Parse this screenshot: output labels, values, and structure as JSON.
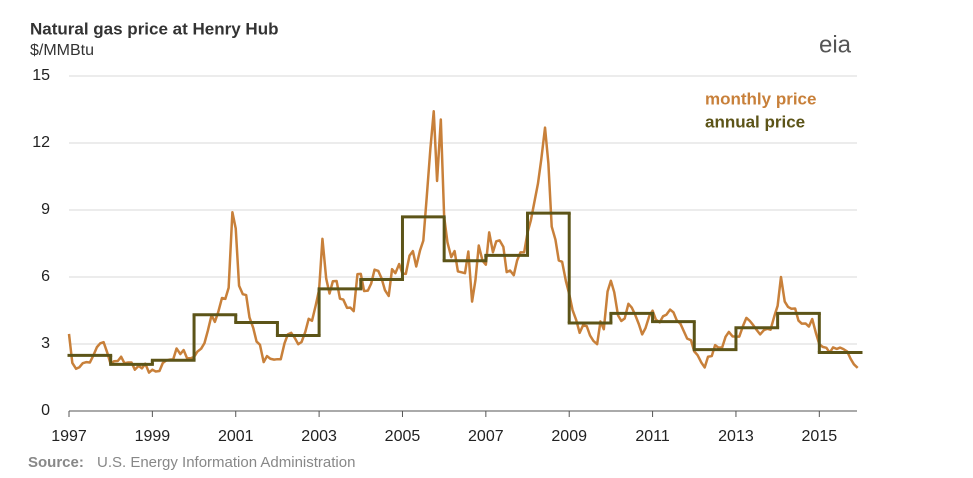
{
  "chart_data": {
    "type": "line",
    "title": "Natural gas price at Henry Hub",
    "subtitle": "$/MMBtu",
    "logo": "eia",
    "source_label": "Source:",
    "source": "U.S. Energy Information Administration",
    "xlim": [
      1997,
      2016
    ],
    "xticks": [
      1997,
      1999,
      2001,
      2003,
      2005,
      2007,
      2009,
      2011,
      2013,
      2015
    ],
    "ylim": [
      0,
      15
    ],
    "yticks": [
      0,
      3,
      6,
      9,
      12,
      15
    ],
    "grid": true,
    "legend": "upper right",
    "series": [
      {
        "name": "monthly price",
        "color": "#c8803a",
        "x": [
          1997,
          1997.08,
          1997.17,
          1997.25,
          1997.33,
          1997.42,
          1997.5,
          1997.58,
          1997.67,
          1997.75,
          1997.83,
          1997.92,
          1998,
          1998.08,
          1998.17,
          1998.25,
          1998.33,
          1998.42,
          1998.5,
          1998.58,
          1998.67,
          1998.75,
          1998.83,
          1998.92,
          1999,
          1999.08,
          1999.17,
          1999.25,
          1999.33,
          1999.42,
          1999.5,
          1999.58,
          1999.67,
          1999.75,
          1999.83,
          1999.92,
          2000,
          2000.08,
          2000.17,
          2000.25,
          2000.33,
          2000.42,
          2000.5,
          2000.58,
          2000.67,
          2000.75,
          2000.83,
          2000.92,
          2001,
          2001.08,
          2001.17,
          2001.25,
          2001.33,
          2001.42,
          2001.5,
          2001.58,
          2001.67,
          2001.75,
          2001.83,
          2001.92,
          2002,
          2002.08,
          2002.17,
          2002.25,
          2002.33,
          2002.42,
          2002.5,
          2002.58,
          2002.67,
          2002.75,
          2002.83,
          2002.92,
          2003,
          2003.08,
          2003.17,
          2003.25,
          2003.33,
          2003.42,
          2003.5,
          2003.58,
          2003.67,
          2003.75,
          2003.83,
          2003.92,
          2004,
          2004.08,
          2004.17,
          2004.25,
          2004.33,
          2004.42,
          2004.5,
          2004.58,
          2004.67,
          2004.75,
          2004.83,
          2004.92,
          2005,
          2005.08,
          2005.17,
          2005.25,
          2005.33,
          2005.42,
          2005.5,
          2005.58,
          2005.67,
          2005.75,
          2005.83,
          2005.92,
          2006,
          2006.08,
          2006.17,
          2006.25,
          2006.33,
          2006.42,
          2006.5,
          2006.58,
          2006.67,
          2006.75,
          2006.83,
          2006.92,
          2007,
          2007.08,
          2007.17,
          2007.25,
          2007.33,
          2007.42,
          2007.5,
          2007.58,
          2007.67,
          2007.75,
          2007.83,
          2007.92,
          2008,
          2008.08,
          2008.17,
          2008.25,
          2008.33,
          2008.42,
          2008.5,
          2008.58,
          2008.67,
          2008.75,
          2008.83,
          2008.92,
          2009,
          2009.08,
          2009.17,
          2009.25,
          2009.33,
          2009.42,
          2009.5,
          2009.58,
          2009.67,
          2009.75,
          2009.83,
          2009.92,
          2010,
          2010.08,
          2010.17,
          2010.25,
          2010.33,
          2010.42,
          2010.5,
          2010.58,
          2010.67,
          2010.75,
          2010.83,
          2010.92,
          2011,
          2011.08,
          2011.17,
          2011.25,
          2011.33,
          2011.42,
          2011.5,
          2011.58,
          2011.67,
          2011.75,
          2011.83,
          2011.92,
          2012,
          2012.08,
          2012.17,
          2012.25,
          2012.33,
          2012.42,
          2012.5,
          2012.58,
          2012.67,
          2012.75,
          2012.83,
          2012.92,
          2013,
          2013.08,
          2013.17,
          2013.25,
          2013.33,
          2013.42,
          2013.5,
          2013.58,
          2013.67,
          2013.75,
          2013.83,
          2013.92,
          2014,
          2014.08,
          2014.17,
          2014.25,
          2014.33,
          2014.42,
          2014.5,
          2014.58,
          2014.67,
          2014.75,
          2014.83,
          2014.92,
          2015,
          2015.08,
          2015.17,
          2015.25,
          2015.33,
          2015.42,
          2015.5,
          2015.58,
          2015.67,
          2015.75,
          2015.83,
          2015.92
        ],
        "values": [
          3.45,
          2.15,
          1.89,
          1.96,
          2.14,
          2.19,
          2.17,
          2.47,
          2.86,
          3.03,
          3.08,
          2.6,
          2.09,
          2.23,
          2.24,
          2.43,
          2.14,
          2.17,
          2.17,
          1.85,
          2.02,
          1.91,
          2.12,
          1.72,
          1.85,
          1.77,
          1.79,
          2.15,
          2.26,
          2.3,
          2.31,
          2.8,
          2.55,
          2.73,
          2.37,
          2.36,
          2.42,
          2.66,
          2.79,
          3.04,
          3.59,
          4.29,
          3.99,
          4.43,
          5.06,
          5.02,
          5.52,
          8.9,
          8.17,
          5.61,
          5.23,
          5.19,
          4.19,
          3.72,
          3.11,
          2.97,
          2.19,
          2.46,
          2.34,
          2.3,
          2.32,
          2.32,
          3.03,
          3.43,
          3.5,
          3.26,
          2.99,
          3.09,
          3.55,
          4.13,
          4.04,
          4.74,
          5.43,
          7.71,
          5.93,
          5.26,
          5.81,
          5.82,
          5.03,
          4.99,
          4.62,
          4.63,
          4.47,
          6.13,
          6.14,
          5.37,
          5.39,
          5.71,
          6.33,
          6.27,
          5.93,
          5.41,
          5.15,
          6.35,
          6.17,
          6.58,
          6.15,
          6.14,
          6.96,
          7.16,
          6.47,
          7.18,
          7.63,
          9.53,
          11.75,
          13.42,
          10.3,
          13.05,
          8.69,
          7.54,
          6.89,
          7.16,
          6.25,
          6.21,
          6.17,
          7.14,
          4.9,
          5.85,
          7.41,
          6.73,
          6.55,
          8,
          7.11,
          7.6,
          7.64,
          7.35,
          6.22,
          6.29,
          6.08,
          6.74,
          7.1,
          7.11,
          7.99,
          8.54,
          9.41,
          10.18,
          11.27,
          12.69,
          11.09,
          8.26,
          7.67,
          6.74,
          6.68,
          5.82,
          5.24,
          4.52,
          4.06,
          3.5,
          3.83,
          3.8,
          3.38,
          3.14,
          2.99,
          4.01,
          3.66,
          5.35,
          5.83,
          5.32,
          4.29,
          4.03,
          4.14,
          4.8,
          4.63,
          4.32,
          3.89,
          3.43,
          3.71,
          4.25,
          4.49,
          4.09,
          3.97,
          4.24,
          4.31,
          4.54,
          4.42,
          4.06,
          3.9,
          3.57,
          3.24,
          3.17,
          2.67,
          2.5,
          2.17,
          1.95,
          2.43,
          2.46,
          2.95,
          2.84,
          2.85,
          3.32,
          3.54,
          3.34,
          3.33,
          3.33,
          3.81,
          4.17,
          4.04,
          3.83,
          3.62,
          3.43,
          3.62,
          3.68,
          3.64,
          4.24,
          4.71,
          6,
          4.9,
          4.66,
          4.58,
          4.59,
          4.05,
          3.91,
          3.92,
          3.78,
          4.12,
          3.48,
          2.99,
          2.87,
          2.83,
          2.61,
          2.85,
          2.78,
          2.84,
          2.77,
          2.66,
          2.34,
          2.09,
          1.93
        ]
      },
      {
        "name": "annual price",
        "color": "#5c5418",
        "step": true,
        "x": [
          1997,
          1998,
          1999,
          2000,
          2001,
          2002,
          2003,
          2004,
          2005,
          2006,
          2007,
          2008,
          2009,
          2010,
          2011,
          2012,
          2013,
          2014,
          2015
        ],
        "values": [
          2.49,
          2.09,
          2.27,
          4.31,
          3.96,
          3.38,
          5.47,
          5.89,
          8.69,
          6.73,
          6.97,
          8.86,
          3.94,
          4.37,
          4.0,
          2.75,
          3.73,
          4.37,
          2.62
        ]
      }
    ]
  }
}
